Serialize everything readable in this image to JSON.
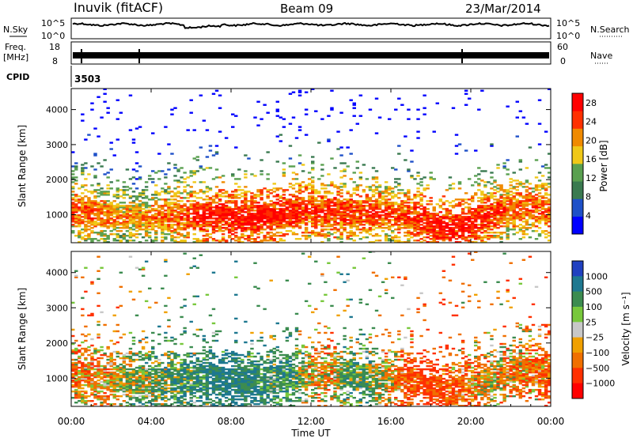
{
  "header": {
    "station": "Inuvik (fitACF)",
    "beam": "Beam 09",
    "date": "23/Mar/2014"
  },
  "strips": {
    "nsky": {
      "label": "N.Sky",
      "ticks": [
        "10^5",
        "10^0"
      ]
    },
    "nsearch": {
      "label": "N.Search"
    },
    "freq": {
      "label_line1": "Freq.",
      "label_line2": "[MHz]",
      "ticks": [
        "18",
        "8"
      ]
    },
    "nave": {
      "label": "Nave",
      "ticks": [
        "60",
        "0"
      ]
    },
    "cpid": {
      "label": "CPID",
      "value": "3503"
    }
  },
  "colors": {
    "power_scale": [
      "#0000ff",
      "#1e50c8",
      "#3a7a50",
      "#5aa050",
      "#f0c818",
      "#f08a00",
      "#ff3000",
      "#ff0000"
    ],
    "velocity_scale": [
      "#2040c0",
      "#1e7890",
      "#3c8c50",
      "#78c83c",
      "#c8c8c8",
      "#f0a000",
      "#f07000",
      "#ff3000",
      "#ff0000"
    ]
  },
  "chart_data": [
    {
      "type": "heatmap",
      "title": "",
      "xlabel": "",
      "ylabel": "Slant Range [km]",
      "x_ticks": [
        "00:00",
        "04:00",
        "08:00",
        "12:00",
        "16:00",
        "20:00",
        "00:00"
      ],
      "y_ticks": [
        "1000",
        "2000",
        "3000",
        "4000"
      ],
      "ylim": [
        200,
        4600
      ],
      "colorbar": {
        "label": "Power [dB]",
        "ticks": [
          "4",
          "8",
          "12",
          "16",
          "20",
          "24",
          "28"
        ],
        "range": [
          0,
          30
        ]
      },
      "x_hours": [
        0,
        1,
        2,
        3,
        4,
        5,
        6,
        7,
        8,
        9,
        10,
        11,
        12,
        13,
        14,
        15,
        16,
        17,
        18,
        19,
        20,
        21,
        22,
        23,
        24
      ],
      "band_center_km": [
        1100,
        1050,
        950,
        900,
        900,
        950,
        950,
        1000,
        900,
        900,
        950,
        1050,
        1100,
        1100,
        1050,
        1050,
        1000,
        900,
        700,
        600,
        700,
        950,
        1150,
        1200,
        1100
      ],
      "band_power_db": [
        24,
        24,
        22,
        20,
        22,
        24,
        26,
        28,
        28,
        28,
        28,
        28,
        26,
        26,
        26,
        26,
        24,
        26,
        28,
        28,
        28,
        26,
        24,
        24,
        24
      ]
    },
    {
      "type": "heatmap",
      "title": "",
      "xlabel": "Time UT",
      "ylabel": "Slant Range [km]",
      "x_ticks": [
        "00:00",
        "04:00",
        "08:00",
        "12:00",
        "16:00",
        "20:00",
        "00:00"
      ],
      "y_ticks": [
        "1000",
        "2000",
        "3000",
        "4000"
      ],
      "ylim": [
        200,
        4600
      ],
      "colorbar": {
        "label": "Velocity [m s⁻¹]",
        "ticks": [
          "1000",
          "500",
          "100",
          "25",
          "−25",
          "−100",
          "−500",
          "−1000"
        ]
      },
      "x_hours": [
        0,
        1,
        2,
        3,
        4,
        5,
        6,
        7,
        8,
        9,
        10,
        11,
        12,
        13,
        14,
        15,
        16,
        17,
        18,
        19,
        20,
        21,
        22,
        23,
        24
      ],
      "band_center_km": [
        1100,
        1050,
        950,
        900,
        900,
        950,
        950,
        1000,
        900,
        900,
        950,
        1050,
        1100,
        1100,
        1050,
        1050,
        1000,
        900,
        700,
        600,
        700,
        950,
        1150,
        1200,
        1100
      ],
      "band_velocity_ms": [
        -150,
        -200,
        -100,
        50,
        100,
        150,
        200,
        300,
        400,
        300,
        200,
        250,
        -100,
        -150,
        200,
        100,
        -100,
        -300,
        -400,
        -300,
        -200,
        -50,
        -150,
        -200,
        -250
      ]
    }
  ]
}
